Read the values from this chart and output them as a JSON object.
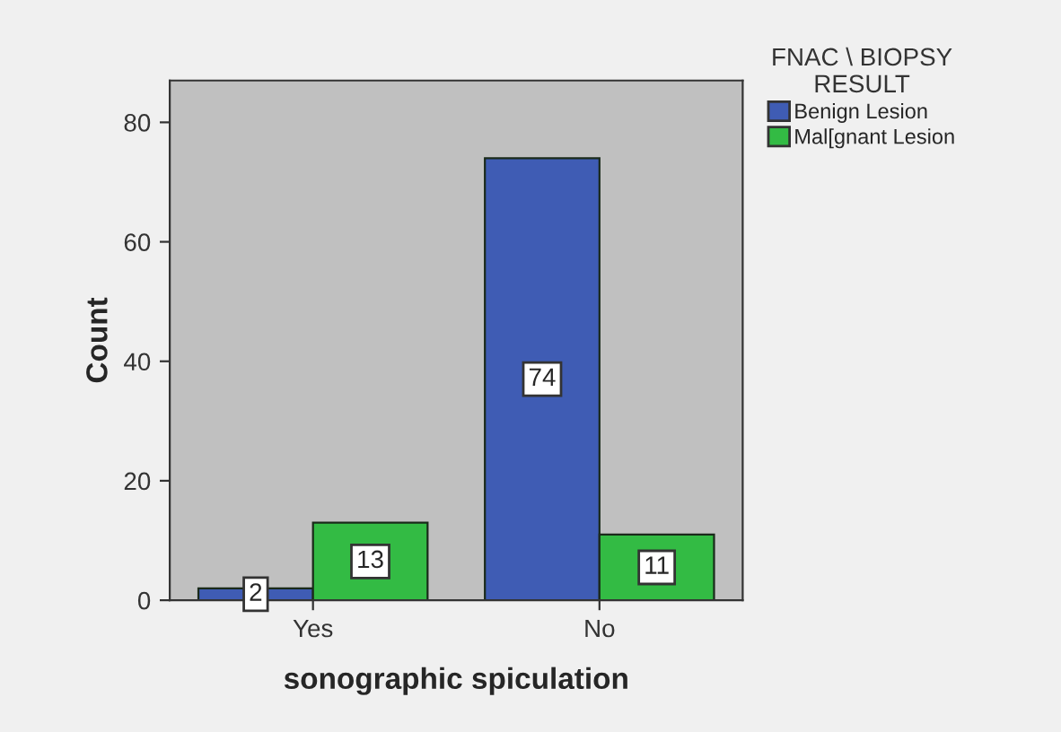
{
  "chart_data": {
    "type": "bar",
    "xlabel": "sonographic spiculation",
    "ylabel": "Count",
    "legend_title": "FNAC \\ BIOPSY\nRESULT",
    "categories": [
      "Yes",
      "No"
    ],
    "series": [
      {
        "name": "Benign Lesion",
        "color": "#3f5cb4",
        "values": [
          2,
          74
        ]
      },
      {
        "name": "Mal[gnant Lesion",
        "color": "#33bb44",
        "values": [
          13,
          11
        ]
      }
    ],
    "ylim": [
      0,
      87
    ],
    "yticks": [
      0,
      20,
      40,
      60,
      80
    ],
    "grid": false,
    "legend": "top right",
    "data_labels": true
  }
}
